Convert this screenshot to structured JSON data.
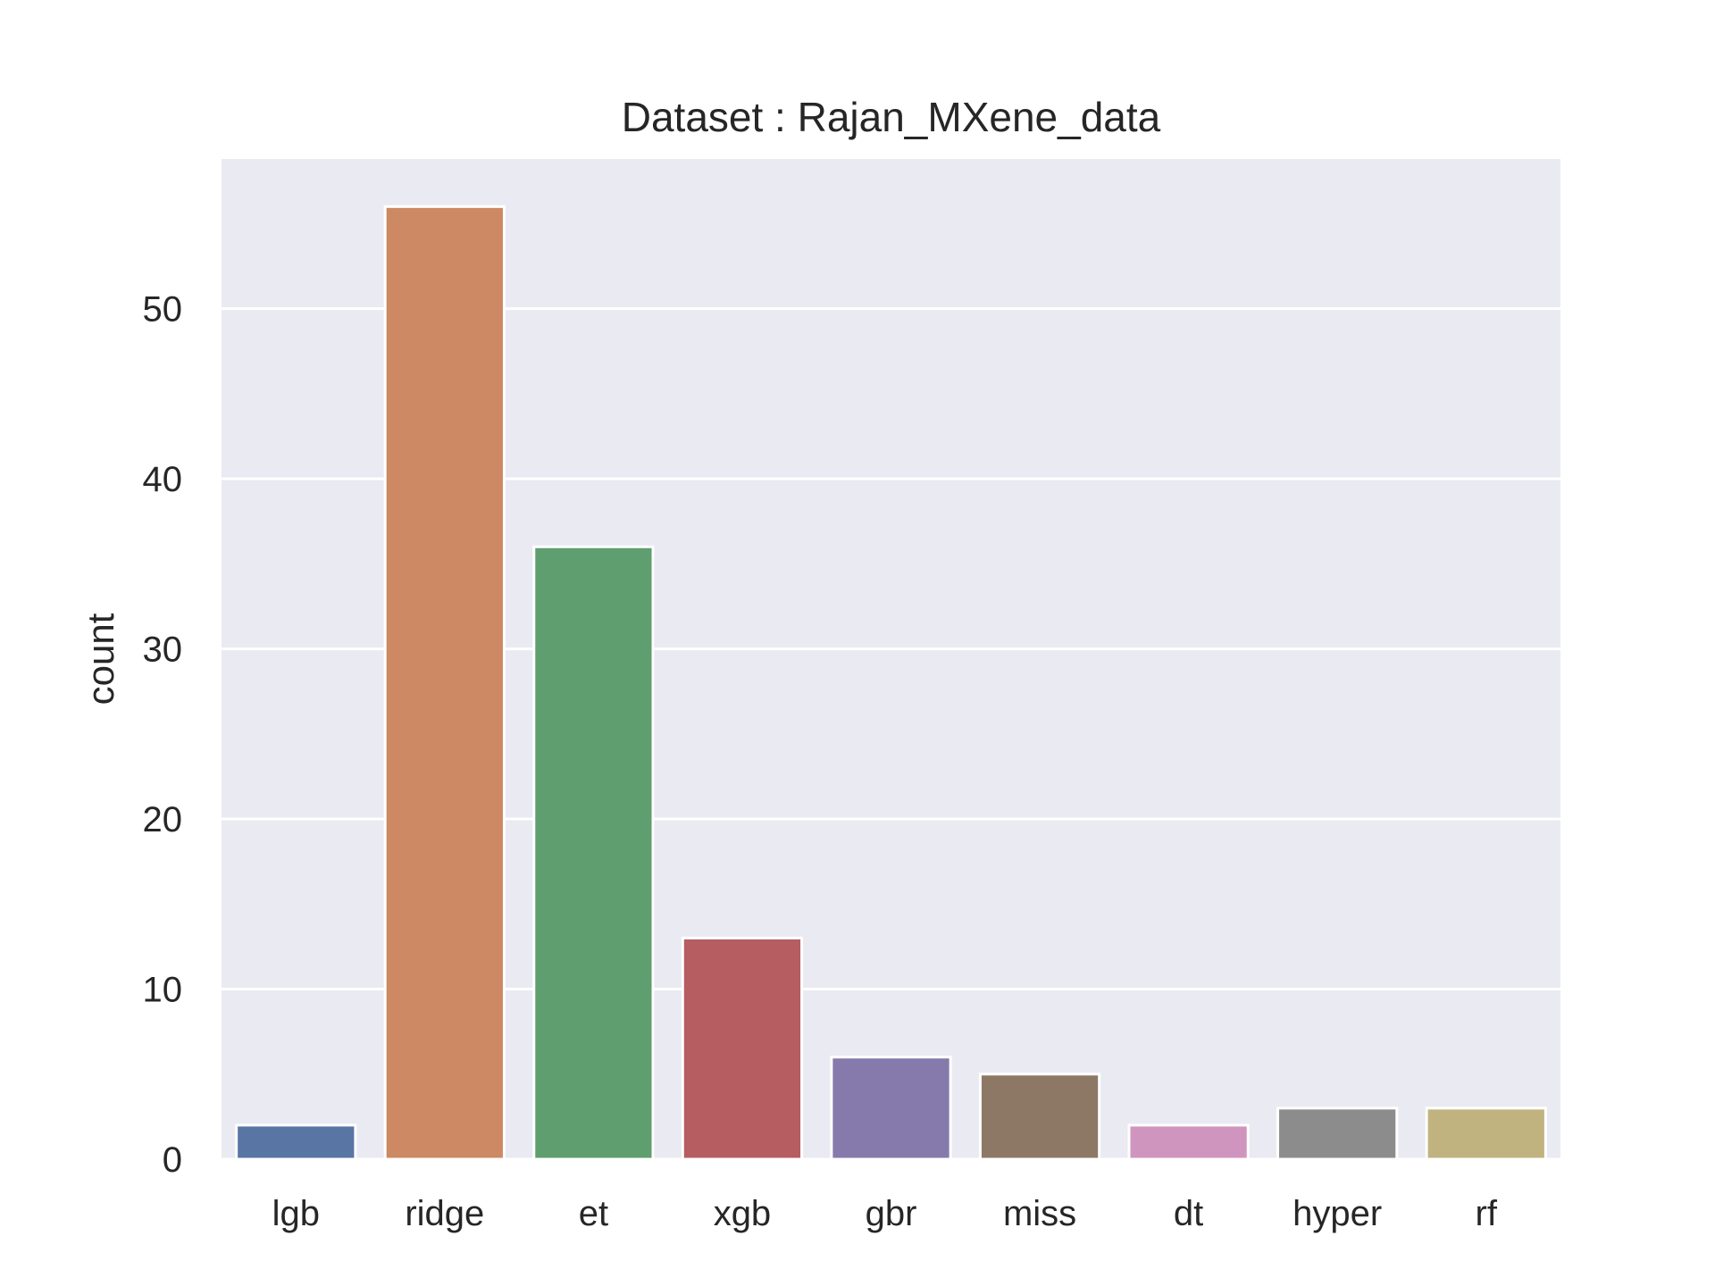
{
  "chart_data": {
    "type": "bar",
    "title": "Dataset : Rajan_MXene_data",
    "xlabel": "",
    "ylabel": "count",
    "categories": [
      "lgb",
      "ridge",
      "et",
      "xgb",
      "gbr",
      "miss",
      "dt",
      "hyper",
      "rf"
    ],
    "values": [
      2,
      56,
      36,
      13,
      6,
      5,
      2,
      3,
      3
    ],
    "colors": [
      "#5975a4",
      "#cc8963",
      "#5f9e6e",
      "#b55d60",
      "#857aab",
      "#8d7866",
      "#d095bf",
      "#8c8c8c",
      "#c1b37f"
    ],
    "ylim": [
      0,
      58.8
    ],
    "yticks": [
      0,
      10,
      20,
      30,
      40,
      50
    ],
    "grid": true,
    "legend": "none",
    "background_color": "#eaeaf2",
    "grid_color": "#ffffff"
  }
}
